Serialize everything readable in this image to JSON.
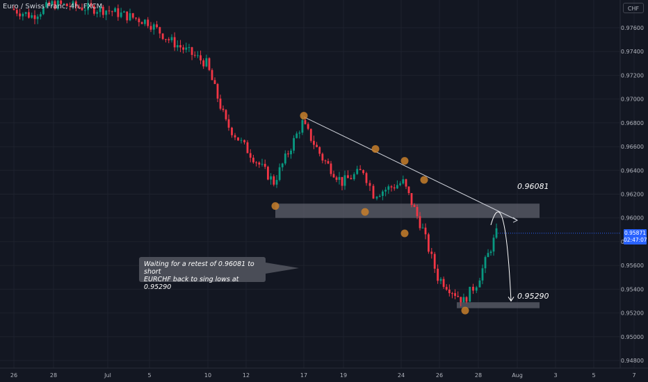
{
  "header": {
    "symbol": "Euro / Swiss Franc, 4h, FXCM",
    "currency": "CHF"
  },
  "price_tag": {
    "price": "0.95871",
    "countdown": "02:47:07"
  },
  "annotation": {
    "line1": "Waiting for a retest of 0.96081 to short",
    "line2": "EURCHF back to sing lows at 0.95290"
  },
  "levels": {
    "resistance": "0.96081",
    "target": "0.95290"
  },
  "colors": {
    "background": "#131722",
    "up": "#089981",
    "down": "#f23645",
    "zone": "#5d606b",
    "marker": "#c87f2a",
    "trendline": "#d1d4dc",
    "price_tag": "#2962ff",
    "grid": "#1e222d"
  },
  "chart_data": {
    "type": "candlestick",
    "title": "Euro / Swiss Franc, 4h, FXCM",
    "y_axis": {
      "ticks": [
        "0.97600",
        "0.97400",
        "0.97200",
        "0.97000",
        "0.96800",
        "0.96600",
        "0.96400",
        "0.96200",
        "0.96000",
        "0.95800",
        "0.95600",
        "0.95400",
        "0.95200",
        "0.95000",
        "0.94800"
      ],
      "range": [
        0.9475,
        0.979
      ]
    },
    "x_axis": {
      "ticks": [
        "26",
        "28",
        "Jul",
        "5",
        "10",
        "12",
        "17",
        "19",
        "24",
        "26",
        "28",
        "Aug",
        "3",
        "5",
        "7"
      ]
    },
    "series": [
      {
        "x": "Jun 26",
        "close": 0.9776
      },
      {
        "x": "Jun 27",
        "close": 0.977
      },
      {
        "x": "Jun 28",
        "close": 0.978
      },
      {
        "x": "Jul 3",
        "close": 0.9775
      },
      {
        "x": "Jul 5",
        "close": 0.9765
      },
      {
        "x": "Jul 6",
        "close": 0.975
      },
      {
        "x": "Jul 10",
        "close": 0.973
      },
      {
        "x": "Jul 11",
        "close": 0.968
      },
      {
        "x": "Jul 12",
        "close": 0.966
      },
      {
        "x": "Jul 14",
        "close": 0.963
      },
      {
        "x": "Jul 17",
        "close": 0.968
      },
      {
        "x": "Jul 18",
        "close": 0.965
      },
      {
        "x": "Jul 19",
        "close": 0.963
      },
      {
        "x": "Jul 20",
        "close": 0.964
      },
      {
        "x": "Jul 21",
        "close": 0.962
      },
      {
        "x": "Jul 24",
        "close": 0.963
      },
      {
        "x": "Jul 25",
        "close": 0.959
      },
      {
        "x": "Jul 26",
        "close": 0.955
      },
      {
        "x": "Jul 27",
        "close": 0.953
      },
      {
        "x": "Jul 28",
        "close": 0.9545
      },
      {
        "x": "Jul 31",
        "close": 0.9587
      }
    ],
    "annotations": [
      {
        "type": "zone",
        "price_from": 0.96,
        "price_to": 0.9612,
        "label": "0.96081"
      },
      {
        "type": "zone",
        "price_from": 0.9524,
        "price_to": 0.9529,
        "label": "0.95290"
      },
      {
        "type": "trendline",
        "from": {
          "x": "Jul 17",
          "price": 0.9685
        },
        "to": {
          "x": "Aug 1",
          "price": 0.9598
        }
      },
      {
        "type": "markers",
        "points": [
          {
            "x": "Jul 14",
            "price": 0.961
          },
          {
            "x": "Jul 17",
            "price": 0.9686
          },
          {
            "x": "Jul 20",
            "price": 0.9605
          },
          {
            "x": "Jul 21",
            "price": 0.9658
          },
          {
            "x": "Jul 24",
            "price": 0.9648
          },
          {
            "x": "Jul 24",
            "price": 0.9587
          },
          {
            "x": "Jul 25",
            "price": 0.9632
          },
          {
            "x": "Jul 27",
            "price": 0.9522
          }
        ]
      }
    ],
    "last_price": 0.95871
  }
}
